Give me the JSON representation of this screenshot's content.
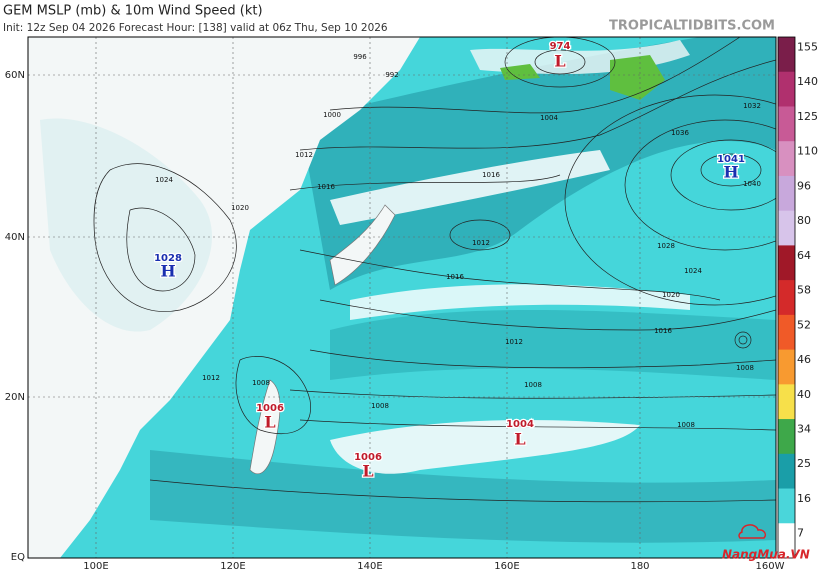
{
  "header": {
    "title": "GEM MSLP (mb) & 10m Wind Speed (kt)",
    "subtitle": "Init: 12z Sep 04 2026   Forecast Hour: [138]   valid at 06z Thu, Sep 10 2026",
    "site": "TROPICALTIDBITS.COM"
  },
  "map": {
    "lat_labels": [
      "60N",
      "40N",
      "20N",
      "EQ"
    ],
    "lon_labels": [
      "100E",
      "120E",
      "140E",
      "160E",
      "180",
      "160W"
    ],
    "centers": [
      {
        "letter": "L",
        "value": "974"
      },
      {
        "letter": "H",
        "value": "1041"
      },
      {
        "letter": "H",
        "value": "1028"
      },
      {
        "letter": "L",
        "value": "1006"
      },
      {
        "letter": "L",
        "value": "1006"
      },
      {
        "letter": "L",
        "value": "1004"
      }
    ],
    "isobar_labels": [
      "996",
      "992",
      "1000",
      "1004",
      "1012",
      "1016",
      "1012",
      "1016",
      "1020",
      "1016",
      "1012",
      "1008",
      "1008",
      "1008",
      "1024",
      "1028",
      "1032",
      "1036",
      "1040",
      "1024",
      "1020",
      "1016",
      "1012",
      "1008",
      "1008"
    ]
  },
  "colorbar": {
    "labels": [
      155,
      140,
      125,
      110,
      96,
      80,
      64,
      58,
      52,
      46,
      40,
      34,
      25,
      16,
      7
    ]
  },
  "watermark": "NangMua.VN"
}
